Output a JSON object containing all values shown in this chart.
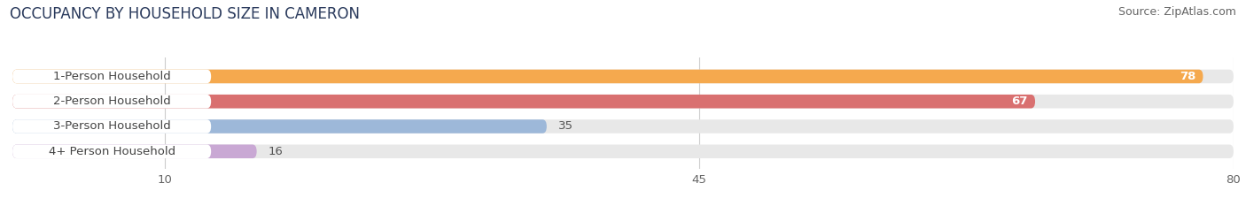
{
  "title": "OCCUPANCY BY HOUSEHOLD SIZE IN CAMERON",
  "source": "Source: ZipAtlas.com",
  "categories": [
    "1-Person Household",
    "2-Person Household",
    "3-Person Household",
    "4+ Person Household"
  ],
  "values": [
    78,
    67,
    35,
    16
  ],
  "colors": [
    "#F5A94E",
    "#D97070",
    "#9DB8D9",
    "#C9A8D4"
  ],
  "bar_height": 0.55,
  "xlim_max": 83,
  "xticks": [
    10,
    45,
    80
  ],
  "background_color": "#ffffff",
  "bar_bg_color": "#e8e8e8",
  "label_bg_color": "#ffffff",
  "title_fontsize": 12,
  "source_fontsize": 9,
  "label_fontsize": 9.5,
  "value_fontsize": 9.5,
  "label_text_color": "#444444",
  "value_text_color_inside": "#ffffff",
  "value_text_color_outside": "#555555",
  "grid_color": "#cccccc",
  "tick_color": "#666666"
}
